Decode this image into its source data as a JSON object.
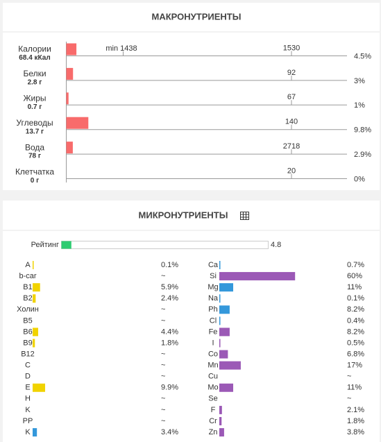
{
  "macros": {
    "title": "МАКРОНУТРИЕНТЫ",
    "min_label": "min 1438",
    "rows": [
      {
        "name": "Калории",
        "amount": "68.4 кКал",
        "norm": 1530,
        "percent": 4.5,
        "percent_label": "4.5%"
      },
      {
        "name": "Белки",
        "amount": "2.8 г",
        "norm": 92,
        "percent": 3,
        "percent_label": "3%"
      },
      {
        "name": "Жиры",
        "amount": "0.7 г",
        "norm": 67,
        "percent": 1,
        "percent_label": "1%"
      },
      {
        "name": "Углеводы",
        "amount": "13.7 г",
        "norm": 140,
        "percent": 9.8,
        "percent_label": "9.8%"
      },
      {
        "name": "Вода",
        "amount": "78 г",
        "norm": 2718,
        "percent": 2.9,
        "percent_label": "2.9%"
      },
      {
        "name": "Клетчатка",
        "amount": "0 г",
        "norm": 20,
        "percent": 0,
        "percent_label": "0%"
      }
    ]
  },
  "micros": {
    "title": "МИКРОНУТРИЕНТЫ",
    "rating": {
      "label": "Рейтинг",
      "value": 4.8,
      "color": "#2ecc71"
    },
    "left": [
      {
        "name": "A",
        "value": 0.1,
        "label": "0.1%",
        "color": "#f1d300"
      },
      {
        "name": "b-car",
        "value": null,
        "label": "~",
        "color": "#f1d300"
      },
      {
        "name": "B1",
        "value": 5.9,
        "label": "5.9%",
        "color": "#f1d300"
      },
      {
        "name": "B2",
        "value": 2.4,
        "label": "2.4%",
        "color": "#f1d300"
      },
      {
        "name": "Холин",
        "value": null,
        "label": "~",
        "color": "#f1d300"
      },
      {
        "name": "B5",
        "value": null,
        "label": "~",
        "color": "#f1d300"
      },
      {
        "name": "B6",
        "value": 4.4,
        "label": "4.4%",
        "color": "#f1d300"
      },
      {
        "name": "B9",
        "value": 1.8,
        "label": "1.8%",
        "color": "#f1d300"
      },
      {
        "name": "B12",
        "value": null,
        "label": "~",
        "color": "#f1d300"
      },
      {
        "name": "C",
        "value": null,
        "label": "~",
        "color": "#f1d300"
      },
      {
        "name": "D",
        "value": null,
        "label": "~",
        "color": "#f1d300"
      },
      {
        "name": "E",
        "value": 9.9,
        "label": "9.9%",
        "color": "#f1d300"
      },
      {
        "name": "H",
        "value": null,
        "label": "~",
        "color": "#f1d300"
      },
      {
        "name": "K",
        "value": null,
        "label": "~",
        "color": "#f1d300"
      },
      {
        "name": "PP",
        "value": null,
        "label": "~",
        "color": "#f1d300"
      },
      {
        "name": "K",
        "value": 3.4,
        "label": "3.4%",
        "color": "#3498db"
      }
    ],
    "right": [
      {
        "name": "Ca",
        "value": 0.7,
        "label": "0.7%",
        "color": "#3498db"
      },
      {
        "name": "Si",
        "value": 60,
        "label": "60%",
        "color": "#9b59b6"
      },
      {
        "name": "Mg",
        "value": 11,
        "label": "11%",
        "color": "#3498db"
      },
      {
        "name": "Na",
        "value": 0.1,
        "label": "0.1%",
        "color": "#3498db"
      },
      {
        "name": "Ph",
        "value": 8.2,
        "label": "8.2%",
        "color": "#3498db"
      },
      {
        "name": "Cl",
        "value": 0.4,
        "label": "0.4%",
        "color": "#3498db"
      },
      {
        "name": "Fe",
        "value": 8.2,
        "label": "8.2%",
        "color": "#9b59b6"
      },
      {
        "name": "I",
        "value": 0.5,
        "label": "0.5%",
        "color": "#9b59b6"
      },
      {
        "name": "Co",
        "value": 6.8,
        "label": "6.8%",
        "color": "#9b59b6"
      },
      {
        "name": "Mn",
        "value": 17,
        "label": "17%",
        "color": "#9b59b6"
      },
      {
        "name": "Cu",
        "value": null,
        "label": "~",
        "color": "#9b59b6"
      },
      {
        "name": "Mo",
        "value": 11,
        "label": "11%",
        "color": "#9b59b6"
      },
      {
        "name": "Se",
        "value": null,
        "label": "~",
        "color": "#9b59b6"
      },
      {
        "name": "F",
        "value": 2.1,
        "label": "2.1%",
        "color": "#9b59b6"
      },
      {
        "name": "Cr",
        "value": 1.8,
        "label": "1.8%",
        "color": "#9b59b6"
      },
      {
        "name": "Zn",
        "value": 3.8,
        "label": "3.8%",
        "color": "#9b59b6"
      }
    ]
  }
}
